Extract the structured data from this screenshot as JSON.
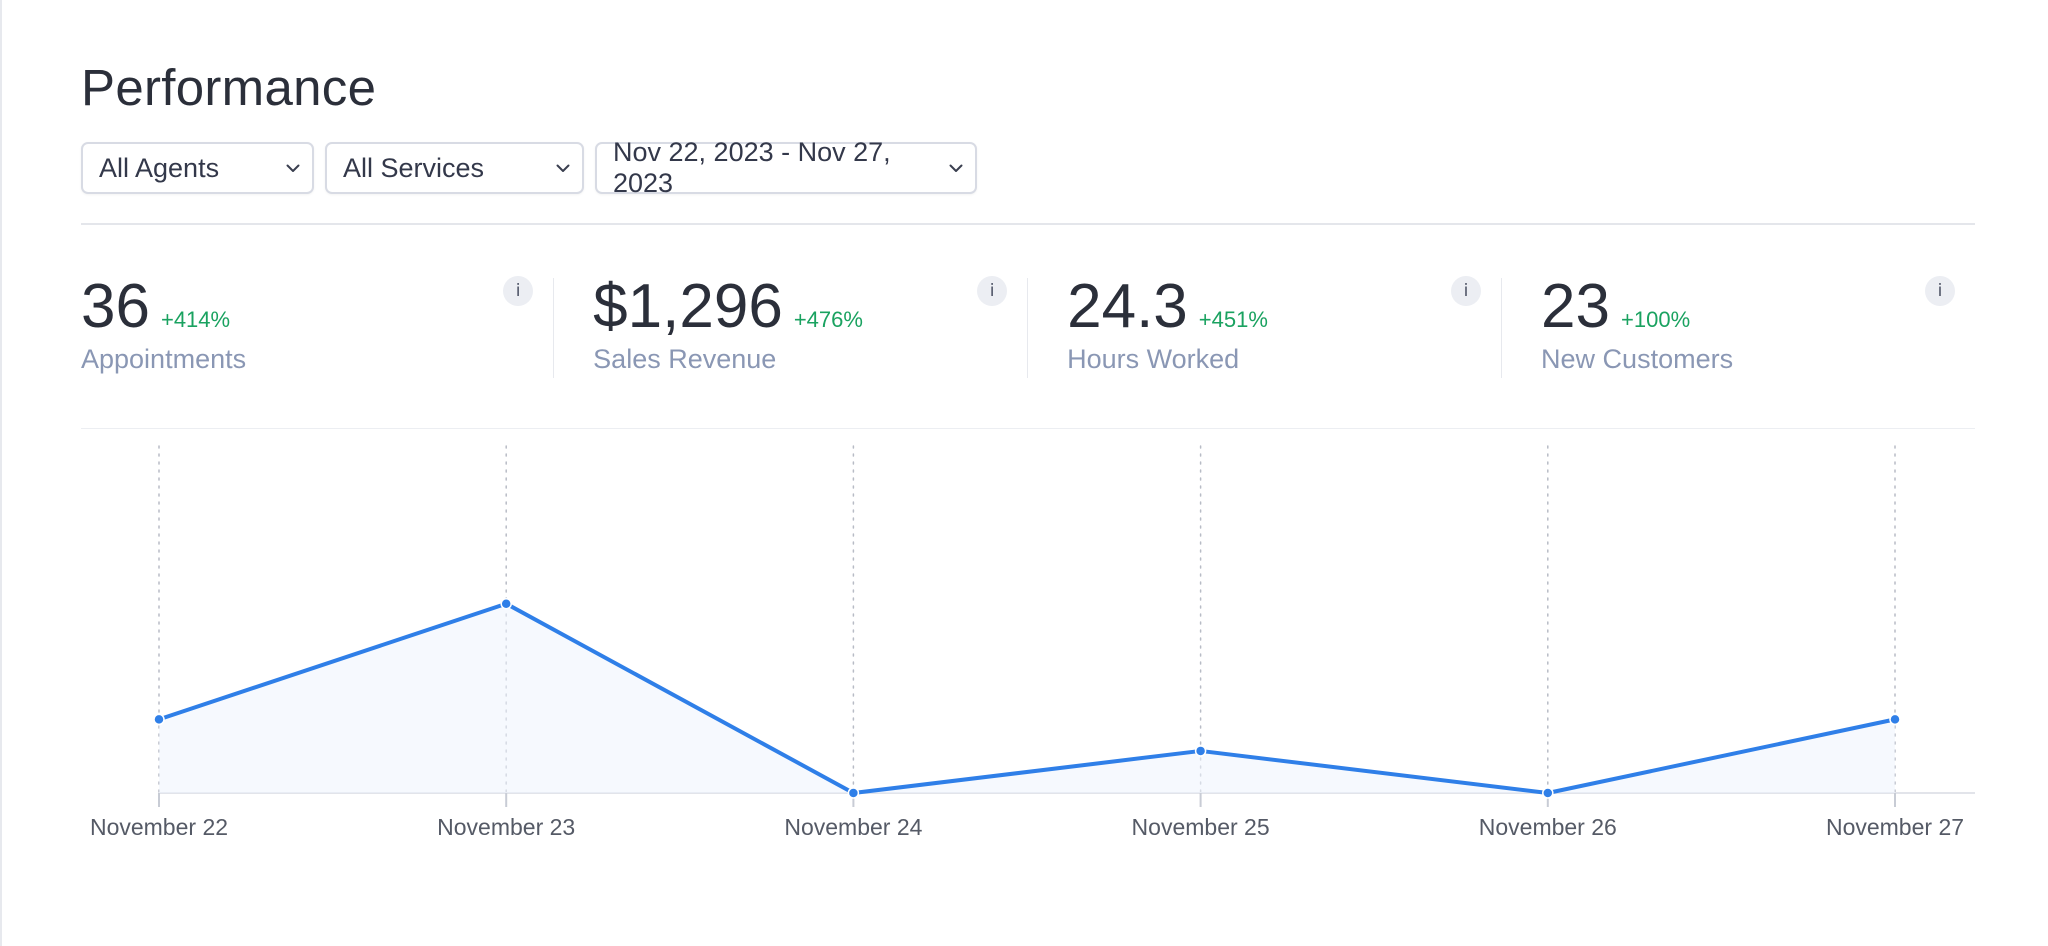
{
  "page": {
    "title": "Performance"
  },
  "filters": {
    "agents": "All Agents",
    "services": "All Services",
    "date_range": "Nov 22, 2023 - Nov 27, 2023"
  },
  "metrics": [
    {
      "value": "36",
      "change": "+414%",
      "label": "Appointments",
      "info": "i"
    },
    {
      "value": "$1,296",
      "change": "+476%",
      "label": "Sales Revenue",
      "info": "i"
    },
    {
      "value": "24.3",
      "change": "+451%",
      "label": "Hours Worked",
      "info": "i"
    },
    {
      "value": "23",
      "change": "+100%",
      "label": "New Customers",
      "info": "i"
    }
  ],
  "colors": {
    "line": "#2f7fe8",
    "positive_change": "#1aa260",
    "label_muted": "#8a97b4"
  },
  "icons": {
    "dropdown": "chevron-down-icon",
    "info": "info-icon"
  },
  "chart_data": {
    "type": "line",
    "categories": [
      "November 22",
      "November 23",
      "November 24",
      "November 25",
      "November 26",
      "November 27"
    ],
    "series": [
      {
        "values": [
          7,
          18,
          0,
          4,
          0,
          7
        ]
      }
    ],
    "title": "",
    "xlabel": "",
    "ylabel": "",
    "ylim": [
      0,
      33
    ],
    "grid": "vertical-dotted",
    "legend": "none"
  }
}
